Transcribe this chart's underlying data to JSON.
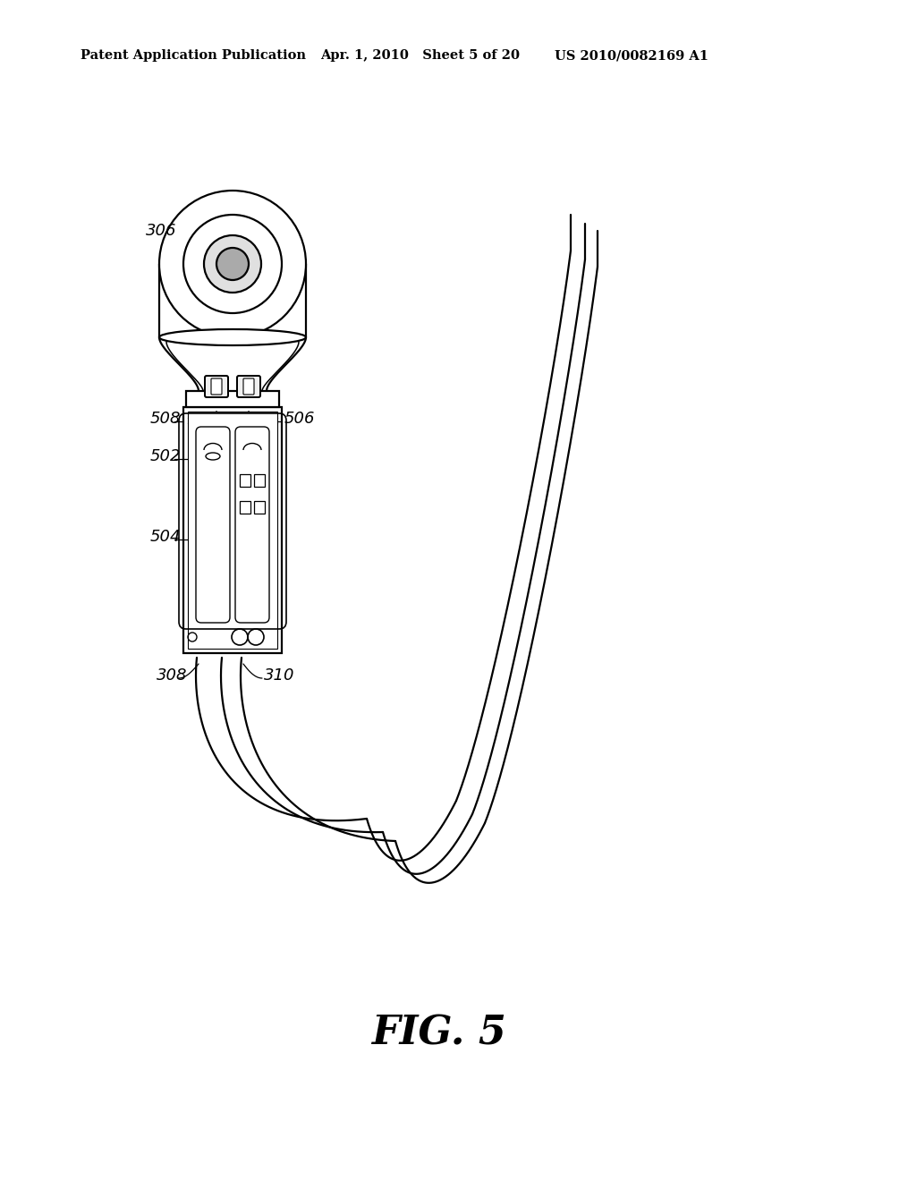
{
  "header_left": "Patent Application Publication",
  "header_center": "Apr. 1, 2010   Sheet 5 of 20",
  "header_right": "US 2010/0082169 A1",
  "fig_title": "FIG. 5",
  "bg_color": "#ffffff",
  "lw": 1.6
}
